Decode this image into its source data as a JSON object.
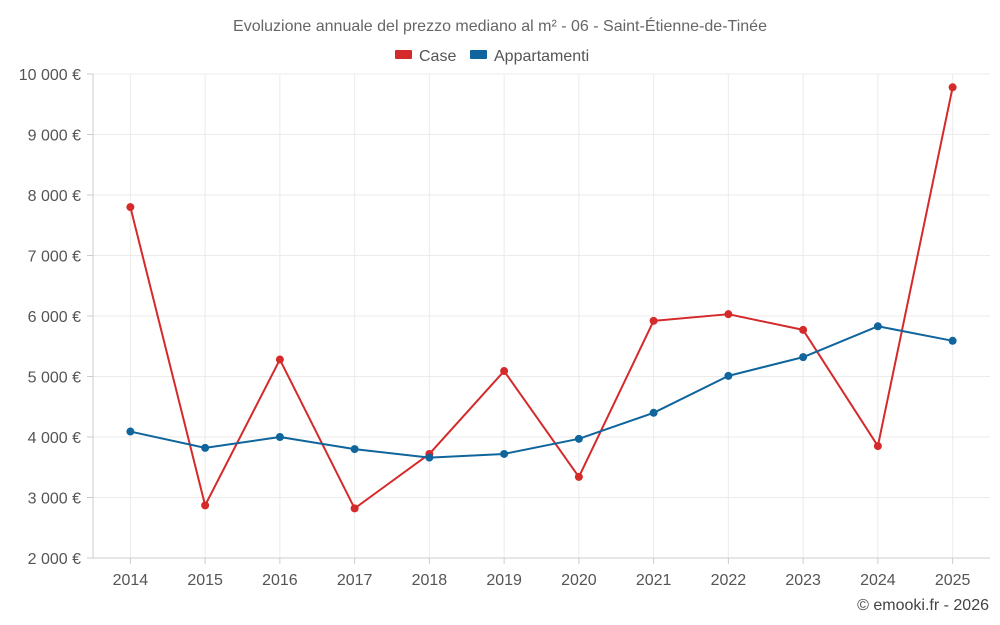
{
  "chart_data": {
    "type": "line",
    "title": "Evoluzione annuale del prezzo mediano al m² - 06 - Saint-Étienne-de-Tinée",
    "categories": [
      "2014",
      "2015",
      "2016",
      "2017",
      "2018",
      "2019",
      "2020",
      "2021",
      "2022",
      "2023",
      "2024",
      "2025"
    ],
    "series": [
      {
        "name": "Case",
        "color": "#d42a2a",
        "values": [
          7800,
          2870,
          5280,
          2820,
          3720,
          5090,
          3340,
          5920,
          6030,
          5770,
          3850,
          9780
        ]
      },
      {
        "name": "Appartamenti",
        "color": "#0f659c",
        "values": [
          4090,
          3820,
          4000,
          3800,
          3660,
          3720,
          3970,
          4400,
          5010,
          5320,
          5830,
          5590
        ]
      }
    ],
    "ylim": [
      2000,
      10000
    ],
    "yticks": [
      2000,
      3000,
      4000,
      5000,
      6000,
      7000,
      8000,
      9000,
      10000
    ],
    "ytick_labels": [
      "2 000 €",
      "3 000 €",
      "4 000 €",
      "5 000 €",
      "6 000 €",
      "7 000 €",
      "8 000 €",
      "9 000 €",
      "10 000 €"
    ],
    "xlabel": "",
    "ylabel": "",
    "legend": "top-center",
    "grid": true
  },
  "credit": "© emooki.fr - 2026"
}
